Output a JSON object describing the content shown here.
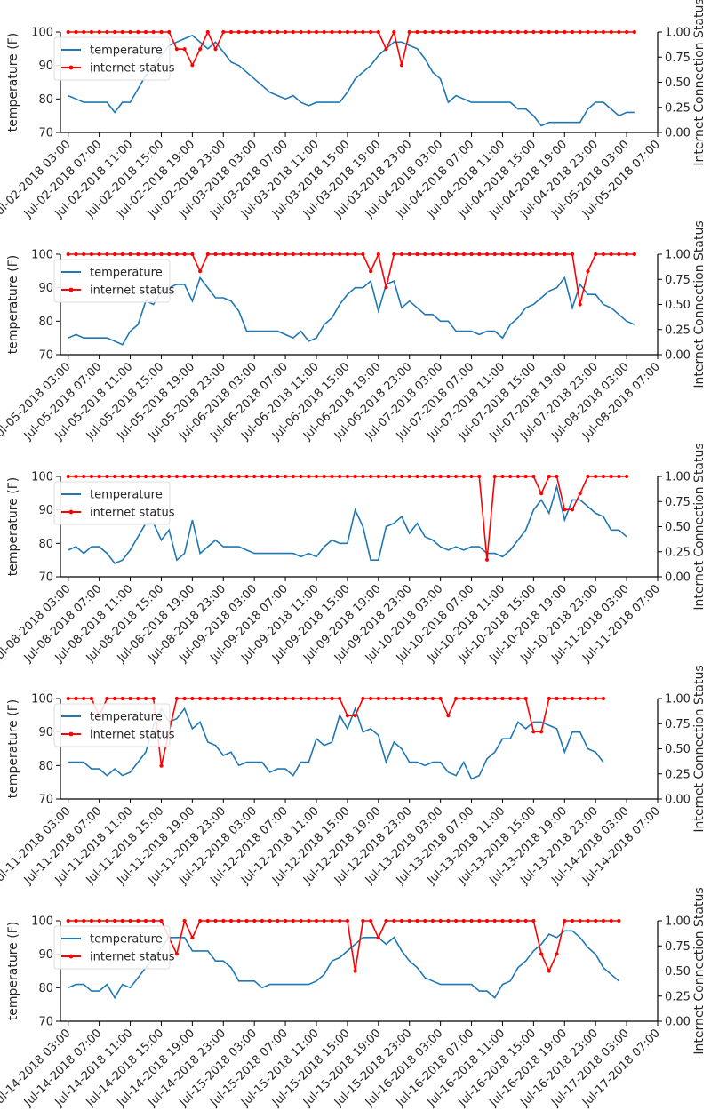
{
  "colors": {
    "temperature": "#1f77b4",
    "internet": "#ff0000",
    "axis": "#000000",
    "text": "#262626"
  },
  "chart_data": [
    {
      "type": "line",
      "ylabel": "temperature (F)",
      "y2label": "Internet Connection Status",
      "ylim": [
        70,
        100
      ],
      "y2lim": [
        0,
        1
      ],
      "yticks": [
        "70",
        "80",
        "90",
        "100"
      ],
      "y2ticks": [
        "0.00",
        "0.25",
        "0.50",
        "0.75",
        "1.00"
      ],
      "x_range": [
        -1,
        76
      ],
      "legend": [
        "temperature",
        "internet status"
      ],
      "legend_position": "upper-left",
      "xticks": [
        "Jul-02-2018 03:00",
        "Jul-02-2018 07:00",
        "Jul-02-2018 11:00",
        "Jul-02-2018 15:00",
        "Jul-02-2018 19:00",
        "Jul-02-2018 23:00",
        "Jul-03-2018 03:00",
        "Jul-03-2018 07:00",
        "Jul-03-2018 11:00",
        "Jul-03-2018 15:00",
        "Jul-03-2018 19:00",
        "Jul-03-2018 23:00",
        "Jul-04-2018 03:00",
        "Jul-04-2018 07:00",
        "Jul-04-2018 11:00",
        "Jul-04-2018 15:00",
        "Jul-04-2018 19:00",
        "Jul-04-2018 23:00",
        "Jul-05-2018 03:00",
        "Jul-05-2018 07:00"
      ],
      "series": [
        {
          "name": "temperature",
          "values": [
            81,
            80,
            79,
            79,
            79,
            79,
            76,
            79,
            79,
            83,
            87,
            90,
            93,
            96,
            97,
            98,
            99,
            97,
            95,
            97,
            94,
            91,
            90,
            88,
            86,
            84,
            82,
            81,
            80,
            81,
            79,
            78,
            79,
            79,
            79,
            79,
            82,
            86,
            88,
            90,
            93,
            95,
            97,
            97,
            96,
            95,
            92,
            88,
            86,
            79,
            81,
            80,
            79,
            79,
            79,
            79,
            79,
            79,
            77,
            77,
            75,
            72,
            73,
            73,
            73,
            73,
            73,
            77,
            79,
            79,
            77,
            75,
            76,
            76
          ]
        },
        {
          "name": "internet status",
          "values": [
            1,
            1,
            1,
            1,
            1,
            1,
            1,
            1,
            1,
            1,
            1,
            1,
            1,
            1,
            0.83,
            0.83,
            0.67,
            0.83,
            1,
            0.83,
            1,
            1,
            1,
            1,
            1,
            1,
            1,
            1,
            1,
            1,
            1,
            1,
            1,
            1,
            1,
            1,
            1,
            1,
            1,
            1,
            1,
            0.83,
            1,
            0.67,
            1,
            1,
            1,
            1,
            1,
            1,
            1,
            1,
            1,
            1,
            1,
            1,
            1,
            1,
            1,
            1,
            1,
            1,
            1,
            1,
            1,
            1,
            1,
            1,
            1,
            1,
            1,
            1,
            1,
            1
          ]
        }
      ]
    },
    {
      "type": "line",
      "ylabel": "temperature (F)",
      "y2label": "Internet Connection Status",
      "ylim": [
        70,
        100
      ],
      "y2lim": [
        0,
        1
      ],
      "yticks": [
        "70",
        "80",
        "90",
        "100"
      ],
      "y2ticks": [
        "0.00",
        "0.25",
        "0.50",
        "0.75",
        "1.00"
      ],
      "x_range": [
        -1,
        76
      ],
      "legend": [
        "temperature",
        "internet status"
      ],
      "legend_position": "upper-left",
      "xticks": [
        "Jul-05-2018 03:00",
        "Jul-05-2018 07:00",
        "Jul-05-2018 11:00",
        "Jul-05-2018 15:00",
        "Jul-05-2018 19:00",
        "Jul-05-2018 23:00",
        "Jul-06-2018 03:00",
        "Jul-06-2018 07:00",
        "Jul-06-2018 11:00",
        "Jul-06-2018 15:00",
        "Jul-06-2018 19:00",
        "Jul-06-2018 23:00",
        "Jul-07-2018 03:00",
        "Jul-07-2018 07:00",
        "Jul-07-2018 11:00",
        "Jul-07-2018 15:00",
        "Jul-07-2018 19:00",
        "Jul-07-2018 23:00",
        "Jul-08-2018 03:00",
        "Jul-08-2018 07:00"
      ],
      "series": [
        {
          "name": "temperature",
          "values": [
            75,
            76,
            75,
            75,
            75,
            75,
            74,
            73,
            77,
            79,
            86,
            85,
            89,
            90,
            91,
            91,
            86,
            93,
            90,
            87,
            87,
            86,
            83,
            77,
            77,
            77,
            77,
            77,
            76,
            75,
            77,
            74,
            75,
            79,
            81,
            85,
            88,
            90,
            90,
            92,
            83,
            91,
            92,
            84,
            86,
            84,
            82,
            82,
            80,
            80,
            77,
            77,
            77,
            76,
            77,
            77,
            75,
            79,
            81,
            84,
            85,
            87,
            89,
            90,
            93,
            84,
            91,
            88,
            88,
            85,
            84,
            82,
            80,
            79
          ]
        },
        {
          "name": "internet status",
          "values": [
            1,
            1,
            1,
            1,
            1,
            1,
            1,
            1,
            1,
            1,
            1,
            1,
            1,
            1,
            1,
            1,
            1,
            0.83,
            1,
            1,
            1,
            1,
            1,
            1,
            1,
            1,
            1,
            1,
            1,
            1,
            1,
            1,
            1,
            1,
            1,
            1,
            1,
            1,
            1,
            0.83,
            1,
            0.67,
            1,
            1,
            1,
            1,
            1,
            1,
            1,
            1,
            1,
            1,
            1,
            1,
            1,
            1,
            1,
            1,
            1,
            1,
            1,
            1,
            1,
            1,
            1,
            1,
            0.5,
            0.83,
            1,
            1,
            1,
            1,
            1,
            1
          ]
        }
      ]
    },
    {
      "type": "line",
      "ylabel": "temperature (F)",
      "y2label": "Internet Connection Status",
      "ylim": [
        70,
        100
      ],
      "y2lim": [
        0,
        1
      ],
      "yticks": [
        "70",
        "80",
        "90",
        "100"
      ],
      "y2ticks": [
        "0.00",
        "0.25",
        "0.50",
        "0.75",
        "1.00"
      ],
      "x_range": [
        -1,
        76
      ],
      "legend": [
        "temperature",
        "internet status"
      ],
      "legend_position": "upper-left",
      "xticks": [
        "Jul-08-2018 03:00",
        "Jul-08-2018 07:00",
        "Jul-08-2018 11:00",
        "Jul-08-2018 15:00",
        "Jul-08-2018 19:00",
        "Jul-08-2018 23:00",
        "Jul-09-2018 03:00",
        "Jul-09-2018 07:00",
        "Jul-09-2018 11:00",
        "Jul-09-2018 15:00",
        "Jul-09-2018 19:00",
        "Jul-09-2018 23:00",
        "Jul-10-2018 03:00",
        "Jul-10-2018 07:00",
        "Jul-10-2018 11:00",
        "Jul-10-2018 15:00",
        "Jul-10-2018 19:00",
        "Jul-10-2018 23:00",
        "Jul-11-2018 03:00",
        "Jul-11-2018 07:00"
      ],
      "series": [
        {
          "name": "temperature",
          "values": [
            78,
            79,
            77,
            79,
            79,
            77,
            74,
            75,
            78,
            82,
            86,
            86,
            81,
            84,
            75,
            77,
            87,
            77,
            79,
            81,
            79,
            79,
            79,
            78,
            77,
            77,
            77,
            77,
            77,
            77,
            76,
            77,
            76,
            79,
            81,
            80,
            80,
            90,
            85,
            75,
            75,
            85,
            86,
            88,
            83,
            86,
            82,
            81,
            79,
            78,
            79,
            78,
            79,
            79,
            77,
            77,
            76,
            78,
            81,
            84,
            90,
            93,
            89,
            97,
            87,
            93,
            93,
            91,
            89,
            88,
            84,
            84,
            82
          ]
        },
        {
          "name": "internet status",
          "values": [
            1,
            1,
            1,
            1,
            1,
            1,
            1,
            1,
            1,
            1,
            1,
            1,
            1,
            1,
            1,
            1,
            1,
            1,
            1,
            1,
            1,
            1,
            1,
            1,
            1,
            1,
            1,
            1,
            1,
            1,
            1,
            1,
            1,
            1,
            1,
            1,
            1,
            1,
            1,
            1,
            1,
            1,
            1,
            1,
            1,
            1,
            1,
            1,
            1,
            1,
            1,
            1,
            1,
            1,
            0.17,
            1,
            1,
            1,
            1,
            1,
            1,
            0.83,
            1,
            1,
            0.67,
            0.67,
            0.83,
            1,
            1,
            1,
            1,
            1,
            1
          ]
        }
      ]
    },
    {
      "type": "line",
      "ylabel": "temperature (F)",
      "y2label": "Internet Connection Status",
      "ylim": [
        70,
        100
      ],
      "y2lim": [
        0,
        1
      ],
      "yticks": [
        "70",
        "80",
        "90",
        "100"
      ],
      "y2ticks": [
        "0.00",
        "0.25",
        "0.50",
        "0.75",
        "1.00"
      ],
      "x_range": [
        -1,
        76
      ],
      "legend": [
        "temperature",
        "internet status"
      ],
      "legend_position": "upper-left",
      "xticks": [
        "Jul-11-2018 03:00",
        "Jul-11-2018 07:00",
        "Jul-11-2018 11:00",
        "Jul-11-2018 15:00",
        "Jul-11-2018 19:00",
        "Jul-11-2018 23:00",
        "Jul-12-2018 03:00",
        "Jul-12-2018 07:00",
        "Jul-12-2018 11:00",
        "Jul-12-2018 15:00",
        "Jul-12-2018 19:00",
        "Jul-12-2018 23:00",
        "Jul-13-2018 03:00",
        "Jul-13-2018 07:00",
        "Jul-13-2018 11:00",
        "Jul-13-2018 15:00",
        "Jul-13-2018 19:00",
        "Jul-13-2018 23:00",
        "Jul-14-2018 03:00",
        "Jul-14-2018 07:00"
      ],
      "series": [
        {
          "name": "temperature",
          "values": [
            81,
            81,
            81,
            79,
            79,
            77,
            79,
            77,
            78,
            81,
            84,
            92,
            97,
            93,
            94,
            97,
            91,
            93,
            87,
            86,
            83,
            84,
            80,
            81,
            81,
            81,
            78,
            79,
            79,
            77,
            81,
            81,
            88,
            86,
            87,
            95,
            91,
            97,
            90,
            91,
            89,
            81,
            87,
            85,
            81,
            81,
            80,
            81,
            81,
            78,
            77,
            81,
            76,
            77,
            82,
            84,
            88,
            88,
            93,
            91,
            93,
            93,
            92,
            91,
            84,
            90,
            90,
            85,
            84,
            81
          ]
        },
        {
          "name": "internet status",
          "values": [
            1,
            1,
            1,
            1,
            0.83,
            1,
            1,
            1,
            1,
            1,
            1,
            1,
            0.33,
            0.67,
            1,
            1,
            1,
            1,
            1,
            1,
            1,
            1,
            1,
            1,
            1,
            1,
            1,
            1,
            1,
            1,
            1,
            1,
            1,
            1,
            1,
            1,
            0.83,
            0.83,
            1,
            1,
            1,
            1,
            1,
            1,
            1,
            1,
            1,
            1,
            1,
            0.83,
            1,
            1,
            1,
            1,
            1,
            1,
            1,
            1,
            1,
            1,
            0.67,
            0.67,
            1,
            1,
            1,
            1,
            1,
            1,
            1,
            1
          ]
        }
      ]
    },
    {
      "type": "line",
      "ylabel": "temperature (F)",
      "y2label": "Internet Connection Status",
      "ylim": [
        70,
        100
      ],
      "y2lim": [
        0,
        1
      ],
      "yticks": [
        "70",
        "80",
        "90",
        "100"
      ],
      "y2ticks": [
        "0.00",
        "0.25",
        "0.50",
        "0.75",
        "1.00"
      ],
      "x_range": [
        -1,
        76
      ],
      "legend": [
        "temperature",
        "internet status"
      ],
      "legend_position": "upper-left",
      "xticks": [
        "Jul-14-2018 03:00",
        "Jul-14-2018 07:00",
        "Jul-14-2018 11:00",
        "Jul-14-2018 15:00",
        "Jul-14-2018 19:00",
        "Jul-14-2018 23:00",
        "Jul-15-2018 03:00",
        "Jul-15-2018 07:00",
        "Jul-15-2018 11:00",
        "Jul-15-2018 15:00",
        "Jul-15-2018 19:00",
        "Jul-15-2018 23:00",
        "Jul-16-2018 03:00",
        "Jul-16-2018 07:00",
        "Jul-16-2018 11:00",
        "Jul-16-2018 15:00",
        "Jul-16-2018 19:00",
        "Jul-16-2018 23:00",
        "Jul-17-2018 03:00",
        "Jul-17-2018 07:00"
      ],
      "series": [
        {
          "name": "temperature",
          "values": [
            80,
            81,
            81,
            79,
            79,
            81,
            77,
            81,
            80,
            83,
            86,
            89,
            92,
            95,
            95,
            95,
            91,
            91,
            91,
            88,
            88,
            86,
            82,
            82,
            82,
            80,
            81,
            81,
            81,
            81,
            81,
            81,
            82,
            84,
            88,
            89,
            91,
            93,
            95,
            95,
            95,
            93,
            95,
            91,
            88,
            86,
            83,
            82,
            81,
            81,
            81,
            81,
            81,
            79,
            79,
            77,
            81,
            82,
            86,
            88,
            91,
            93,
            96,
            95,
            97,
            97,
            95,
            92,
            90,
            86,
            84,
            82
          ]
        },
        {
          "name": "internet status",
          "values": [
            1,
            1,
            1,
            1,
            1,
            1,
            1,
            1,
            1,
            1,
            1,
            1,
            1,
            0.83,
            0.67,
            1,
            0.83,
            1,
            1,
            1,
            1,
            1,
            1,
            1,
            1,
            1,
            1,
            1,
            1,
            1,
            1,
            1,
            1,
            1,
            1,
            1,
            1,
            0.5,
            1,
            1,
            0.83,
            1,
            1,
            1,
            1,
            1,
            1,
            1,
            1,
            1,
            1,
            1,
            1,
            1,
            1,
            1,
            1,
            1,
            1,
            1,
            1,
            0.67,
            0.5,
            0.67,
            1,
            1,
            1,
            1,
            1,
            1,
            1,
            1
          ]
        }
      ]
    }
  ]
}
